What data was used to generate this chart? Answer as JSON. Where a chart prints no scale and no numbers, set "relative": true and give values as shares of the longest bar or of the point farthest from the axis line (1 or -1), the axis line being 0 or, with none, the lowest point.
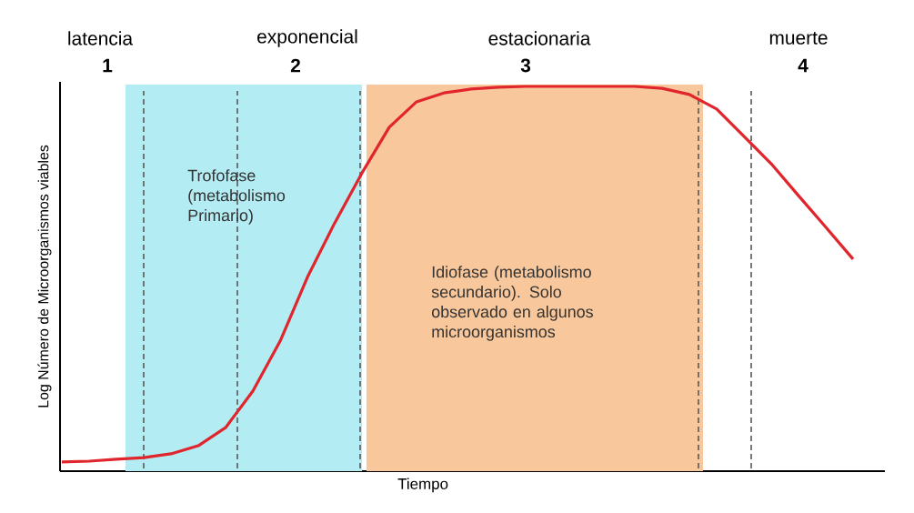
{
  "chart_data": {
    "type": "line",
    "relative": true,
    "xlabel": "Tiempo",
    "ylabel": "Log Número de Microorganismos viables",
    "categories": [
      null,
      null,
      null,
      null,
      null,
      null,
      null,
      null,
      null,
      null,
      null,
      null,
      null,
      null,
      null,
      null,
      null,
      null,
      null,
      null,
      null,
      null,
      null,
      null,
      null,
      null,
      null,
      null,
      null,
      null
    ],
    "series": [
      {
        "color": "#e0262c",
        "line_style": "solid",
        "values": [
          0.024,
          0.026,
          0.031,
          0.035,
          0.045,
          0.066,
          0.113,
          0.208,
          0.338,
          0.504,
          0.645,
          0.775,
          0.894,
          0.96,
          0.983,
          0.993,
          0.998,
          1,
          1,
          1,
          1,
          1,
          0.995,
          0.979,
          0.941,
          0.87,
          0.799,
          0.716,
          0.634,
          0.551
        ]
      }
    ],
    "annotations": [
      "latencia",
      "1",
      "exponencial",
      "2",
      "estacionaria",
      "3",
      "muerte",
      "4",
      "Trofofase (metabolismo Primario)",
      "Idiofase (metabolismo secundario). Solo observado en algunos microorganismos"
    ]
  }
}
